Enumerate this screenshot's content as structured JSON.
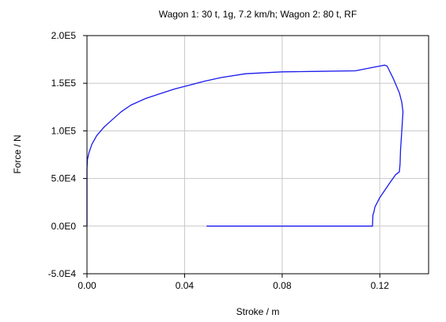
{
  "chart_data": {
    "type": "line",
    "title": "Wagon 1: 30 t, 1g, 7.2 km/h; Wagon 2: 80 t, RF",
    "xlabel": "Stroke / m",
    "ylabel": "Force / N",
    "xlim": [
      0,
      0.14
    ],
    "ylim": [
      -50000,
      200000
    ],
    "x_ticks": [
      0,
      0.04,
      0.08,
      0.12
    ],
    "x_tick_labels": [
      "0.00",
      "0.04",
      "0.08",
      "0.12"
    ],
    "y_ticks": [
      -50000,
      0,
      50000,
      100000,
      150000,
      200000
    ],
    "y_tick_labels": [
      "-5.0E4",
      "0.0E0",
      "5.0E4",
      "1.0E5",
      "1.5E5",
      "2.0E5"
    ],
    "grid": true,
    "legend": "none",
    "colors": {
      "series": "#1a1aee",
      "grid": "#c8c8c8",
      "axes": "#000000"
    },
    "series": [
      {
        "x": [
          0.0,
          0.0,
          0.0002,
          0.0008,
          0.002,
          0.004,
          0.007,
          0.01,
          0.014,
          0.018,
          0.024,
          0.03,
          0.036,
          0.042,
          0.048,
          0.055,
          0.065,
          0.08,
          0.095,
          0.11,
          0.116,
          0.12,
          0.122,
          0.123,
          0.1255,
          0.128,
          0.129,
          0.1295,
          0.129,
          0.1285,
          0.1283,
          0.128,
          0.1265,
          0.124,
          0.12,
          0.118,
          0.1175,
          0.1172,
          0.117,
          0.1,
          0.08,
          0.06,
          0.049
        ],
        "y": [
          0,
          60000,
          70000,
          77000,
          86000,
          95000,
          104000,
          111000,
          120000,
          127000,
          134000,
          139000,
          144000,
          148000,
          152000,
          156000,
          160000,
          162000,
          162500,
          163000,
          166000,
          168000,
          169000,
          168000,
          155000,
          140000,
          130000,
          120000,
          100000,
          80000,
          65000,
          57000,
          54000,
          45000,
          30000,
          20000,
          14000,
          12000,
          0,
          0,
          0,
          0,
          0
        ]
      }
    ]
  }
}
